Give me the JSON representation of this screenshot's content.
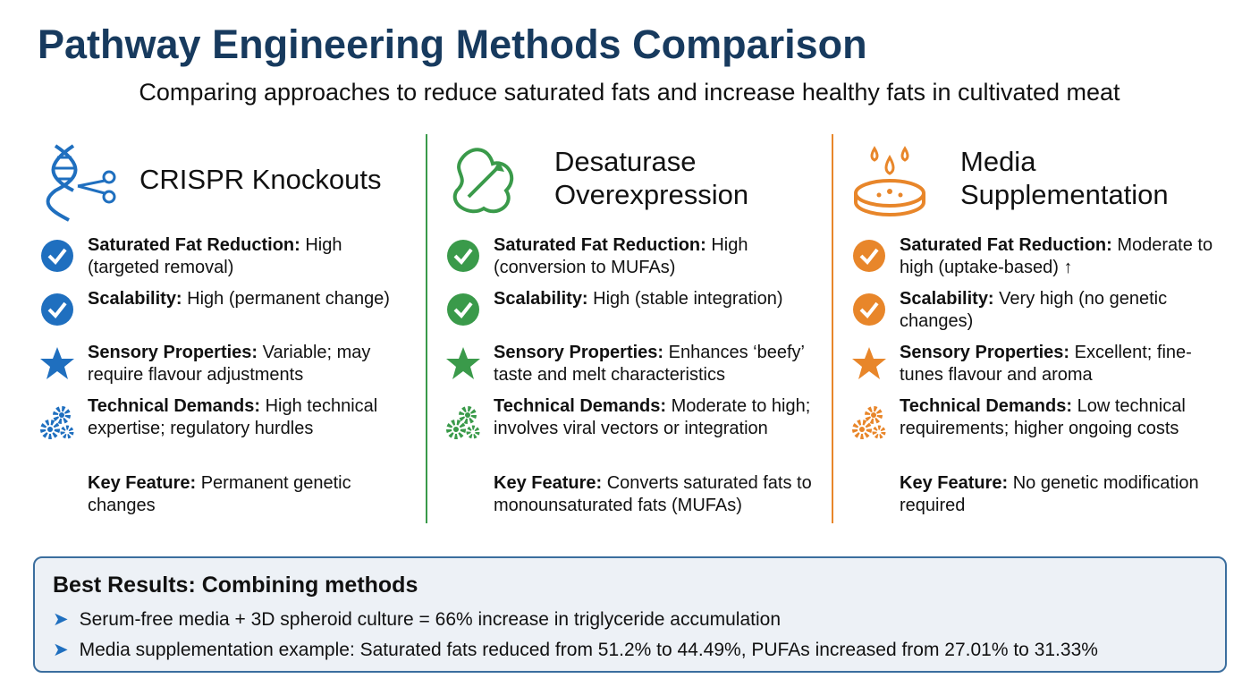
{
  "header": {
    "title": "Pathway Engineering Methods Comparison",
    "subtitle": "Comparing approaches to reduce saturated fats and increase healthy fats in cultivated meat"
  },
  "columns": [
    {
      "title": "CRISPR Knockouts",
      "items": [
        {
          "label": "Saturated Fat Reduction:",
          "text": "High (targeted removal)"
        },
        {
          "label": "Scalability:",
          "text": "High (permanent change)"
        },
        {
          "label": "Sensory Properties:",
          "text": "Variable; may require flavour adjustments"
        },
        {
          "label": "Technical Demands:",
          "text": "High technical expertise; regulatory hurdles"
        }
      ],
      "key_feature": {
        "label": "Key Feature:",
        "text": "Permanent genetic changes"
      }
    },
    {
      "title": "Desaturase Overexpression",
      "items": [
        {
          "label": "Saturated Fat Reduction:",
          "text": "High (conversion to MUFAs)"
        },
        {
          "label": "Scalability:",
          "text": "High (stable integration)"
        },
        {
          "label": "Sensory Properties:",
          "text": "Enhances ‘beefy’ taste and melt characteristics"
        },
        {
          "label": "Technical Demands:",
          "text": "Moderate to high; involves viral vectors or integration"
        }
      ],
      "key_feature": {
        "label": "Key Feature:",
        "text": "Converts saturated fats to monounsaturated fats (MUFAs)"
      }
    },
    {
      "title": "Media Supplementation",
      "items": [
        {
          "label": "Saturated Fat Reduction:",
          "text": "Moderate to high (uptake-based) ↑"
        },
        {
          "label": "Scalability:",
          "text": "Very high (no genetic changes)"
        },
        {
          "label": "Sensory Properties:",
          "text": "Excellent; fine-tunes flavour and aroma"
        },
        {
          "label": "Technical Demands:",
          "text": "Low technical requirements; higher ongoing costs"
        }
      ],
      "key_feature": {
        "label": "Key Feature:",
        "text": "No genetic modification required"
      }
    }
  ],
  "summary": {
    "title": "Best Results: Combining methods",
    "bullets": [
      "Serum-free media + 3D spheroid culture = 66% increase in triglyceride accumulation",
      "Media supplementation example: Saturated fats reduced from 51.2% to 44.49%, PUFAs increased from 27.01% to 31.33%"
    ]
  }
}
